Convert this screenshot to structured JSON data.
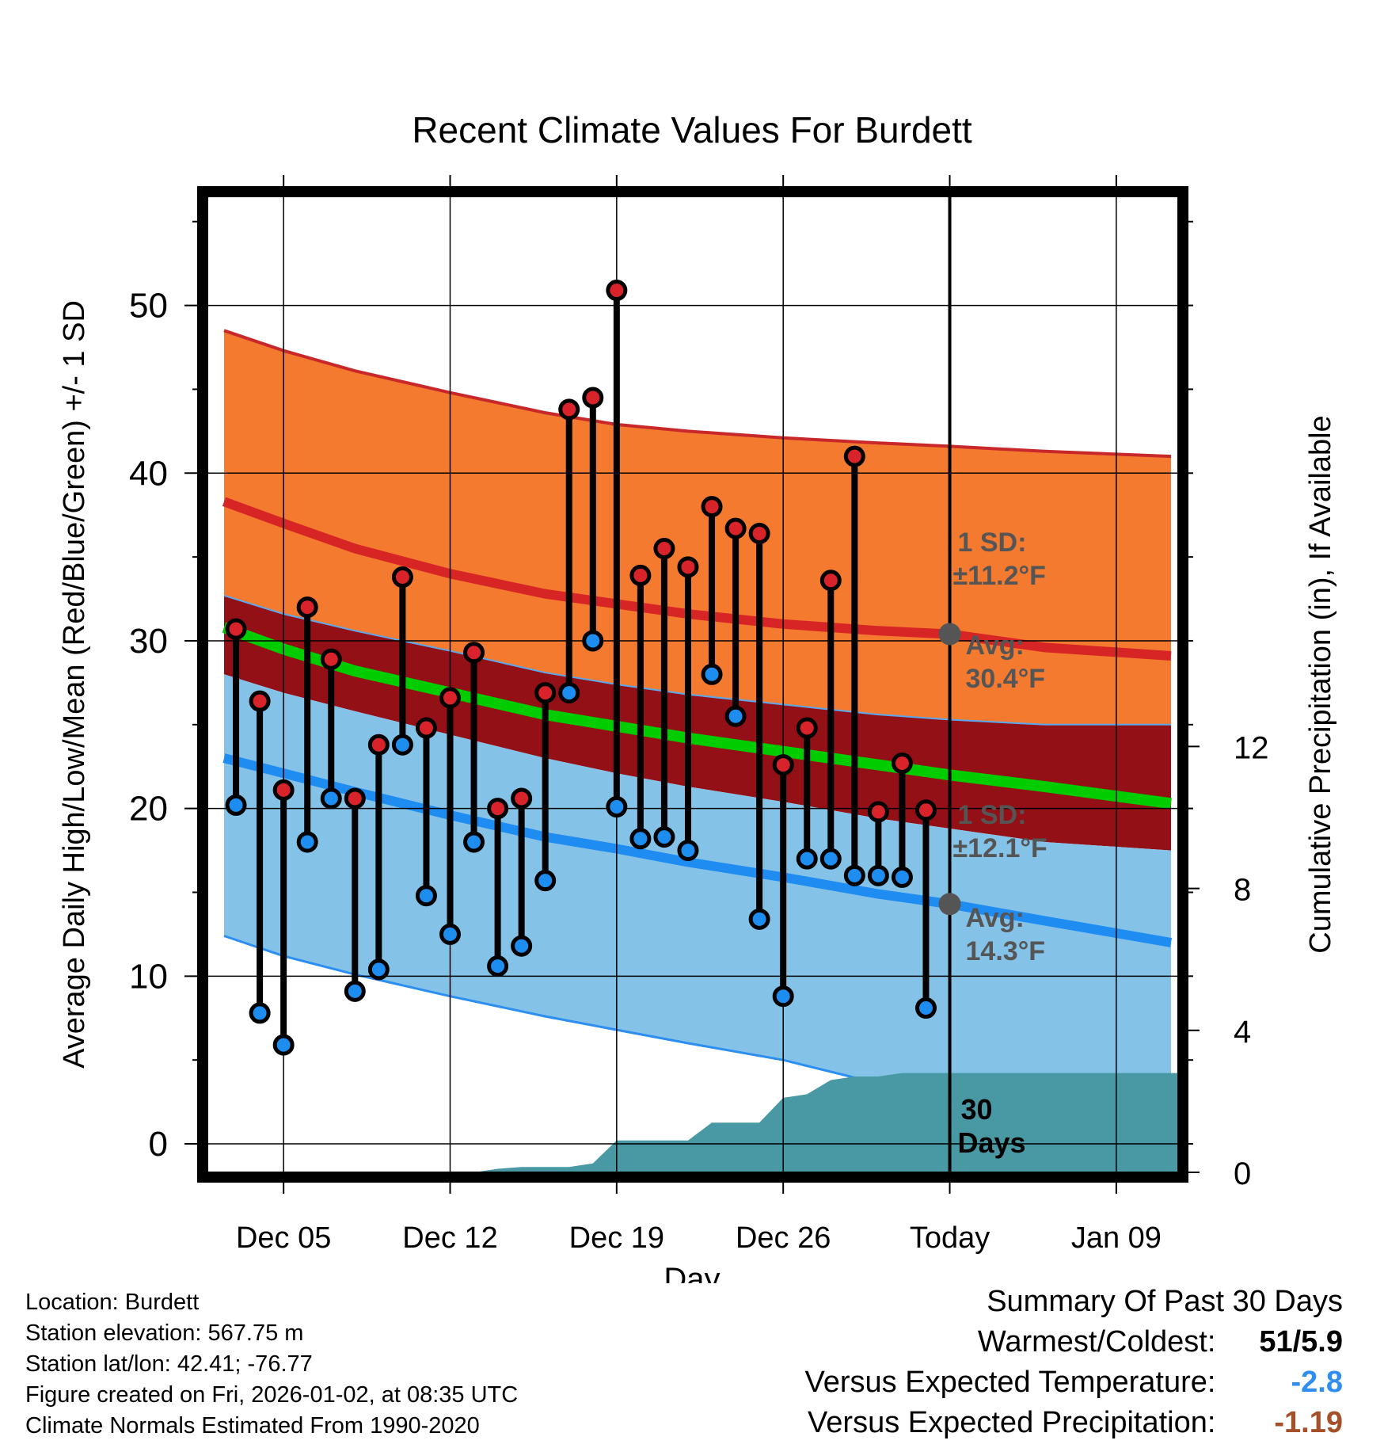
{
  "chart_data": {
    "type": "line",
    "title": "Recent Climate Values For Burdett",
    "xlabel": "Day",
    "ylabel": "Average Daily High/Low/Mean (Red/Blue/Green) +/- 1 SD",
    "ylabel_right": "Cumulative Precipitation (in), If Available",
    "ylim": [
      -1.7,
      56.5
    ],
    "y_ticks": [
      0,
      10,
      20,
      30,
      40,
      50
    ],
    "y2lim": [
      0,
      27.5
    ],
    "y2_ticks": [
      0,
      4,
      8,
      12
    ],
    "x_ticks": [
      {
        "day": 5,
        "label": "Dec 05"
      },
      {
        "day": 12,
        "label": "Dec 12"
      },
      {
        "day": 19,
        "label": "Dec 19"
      },
      {
        "day": 26,
        "label": "Dec 26"
      },
      {
        "day": 33,
        "label": "Today"
      },
      {
        "day": 40,
        "label": "Jan 09"
      }
    ],
    "xlim": [
      1.8,
      42.6
    ],
    "today_day": 33,
    "today_window_label": "30\nDays",
    "normals": {
      "days": [
        2.5,
        5,
        8,
        12,
        16,
        19,
        22,
        26,
        30,
        33,
        37,
        42.3
      ],
      "high_mean": [
        38.3,
        37.0,
        35.5,
        34.0,
        32.8,
        32.2,
        31.6,
        31.0,
        30.6,
        30.4,
        29.6,
        29.1
      ],
      "high_sd_upper": [
        48.5,
        47.3,
        46.1,
        44.8,
        43.6,
        42.9,
        42.5,
        42.1,
        41.8,
        41.6,
        41.3,
        41.0
      ],
      "low_mean": [
        23.0,
        22.1,
        21.0,
        19.6,
        18.3,
        17.6,
        16.8,
        15.9,
        14.9,
        14.3,
        13.3,
        12.0
      ],
      "low_sd_lower": [
        12.4,
        11.2,
        10.1,
        8.8,
        7.6,
        6.8,
        6.0,
        5.0,
        3.6,
        2.8,
        1.8,
        0.4
      ],
      "mean": [
        30.8,
        29.5,
        28.2,
        26.9,
        25.6,
        24.9,
        24.2,
        23.4,
        22.6,
        22.0,
        21.3,
        20.3
      ],
      "high_sd_lower": [
        32.7,
        31.6,
        30.6,
        29.4,
        28.1,
        27.4,
        26.8,
        26.2,
        25.6,
        25.3,
        25.0,
        25.0
      ],
      "low_sd_upper": [
        28.0,
        26.9,
        25.8,
        24.4,
        23.0,
        22.1,
        21.3,
        20.4,
        19.4,
        18.8,
        18.0,
        17.5
      ]
    },
    "observations": {
      "days": [
        3,
        4,
        5,
        6,
        7,
        8,
        9,
        10,
        11,
        12,
        13,
        14,
        15,
        16,
        17,
        18,
        19,
        20,
        21,
        22,
        23,
        24,
        25,
        26,
        27,
        28,
        29,
        30,
        31,
        32
      ],
      "highs": [
        30.7,
        26.4,
        21.1,
        32.0,
        28.9,
        20.6,
        23.8,
        33.8,
        24.8,
        26.6,
        29.3,
        20.0,
        20.6,
        26.9,
        43.8,
        44.5,
        50.9,
        33.9,
        35.5,
        34.4,
        38.0,
        36.7,
        36.4,
        22.6,
        24.8,
        33.6,
        41.0,
        19.8,
        22.7,
        19.9
      ],
      "lows": [
        20.2,
        7.8,
        5.9,
        18.0,
        20.6,
        9.1,
        10.4,
        23.8,
        14.8,
        12.5,
        18.0,
        10.6,
        11.8,
        15.7,
        26.9,
        30.0,
        20.1,
        18.2,
        18.3,
        17.5,
        28.0,
        25.5,
        13.4,
        8.8,
        17.0,
        17.0,
        16.0,
        16.0,
        15.9,
        8.1
      ]
    },
    "precipitation": {
      "days": [
        2,
        13,
        14,
        15,
        17,
        18,
        19,
        20,
        21,
        22,
        23,
        24,
        25,
        26,
        27,
        28,
        29,
        30,
        31,
        32,
        33,
        42.6
      ],
      "cumulative": [
        0,
        0,
        0.1,
        0.15,
        0.15,
        0.25,
        0.9,
        0.9,
        0.9,
        0.9,
        1.4,
        1.4,
        1.4,
        2.1,
        2.2,
        2.6,
        2.7,
        2.7,
        2.8,
        2.8,
        2.8,
        2.8
      ]
    },
    "high_annotation": {
      "sd_line1": "1 SD:",
      "sd_line2": "±11.2°F",
      "avg_line1": "Avg:",
      "avg_line2": "30.4°F",
      "avg_value": 30.4
    },
    "low_annotation": {
      "sd_line1": "1 SD:",
      "sd_line2": "±12.1°F",
      "avg_line1": "Avg:",
      "avg_line2": "14.3°F",
      "avg_value": 14.3
    },
    "colors": {
      "high_band": "#f47a2f",
      "mid_band": "#931016",
      "low_band": "#85c2e8",
      "high_line": "#d72525",
      "low_line": "#1f8cf2",
      "mean_line": "#00cc00",
      "precip": "#4899a4",
      "dot_red": "#d9232a",
      "dot_blue": "#1d8ef0",
      "annotation_gray": "#555555"
    }
  },
  "info": {
    "location": "Location: Burdett",
    "elevation": "Station elevation: 567.75 m",
    "latlon": "Station lat/lon: 42.41; -76.77",
    "created": "Figure created on Fri, 2026-01-02, at 08:35 UTC",
    "normals": "Climate Normals Estimated From 1990-2020"
  },
  "summary": {
    "title": "Summary Of Past 30 Days",
    "warmest_label": "Warmest/Coldest:",
    "warmest_value": "51/5.9",
    "temp_label": "Versus Expected Temperature:",
    "temp_value": "-2.8",
    "temp_color": "#2f8ef0",
    "precip_label": "Versus Expected Precipitation:",
    "precip_value": "-1.19",
    "precip_color": "#a4512a"
  }
}
